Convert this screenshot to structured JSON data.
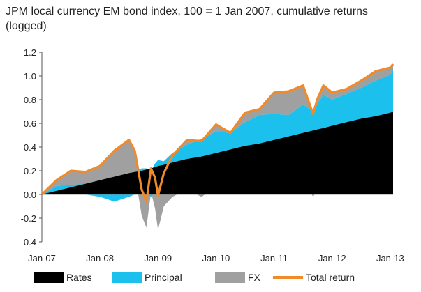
{
  "chart_data": {
    "type": "area",
    "title": "JPM local currency EM bond index, 100 = 1 Jan 2007, cumulative returns (logged)",
    "xlabel": "",
    "ylabel": "",
    "x": [
      2007.0,
      2007.25,
      2007.5,
      2007.75,
      2008.0,
      2008.25,
      2008.5,
      2008.6,
      2008.72,
      2008.8,
      2008.88,
      2008.95,
      2009.0,
      2009.1,
      2009.25,
      2009.5,
      2009.75,
      2010.0,
      2010.25,
      2010.5,
      2010.75,
      2011.0,
      2011.25,
      2011.5,
      2011.67,
      2011.75,
      2011.85,
      2012.0,
      2012.25,
      2012.5,
      2012.75,
      2013.0,
      2013.05
    ],
    "series": [
      {
        "name": "Rates",
        "values": [
          0.0,
          0.03,
          0.06,
          0.09,
          0.12,
          0.15,
          0.18,
          0.19,
          0.2,
          0.21,
          0.22,
          0.23,
          0.24,
          0.25,
          0.27,
          0.3,
          0.32,
          0.35,
          0.38,
          0.41,
          0.43,
          0.46,
          0.49,
          0.52,
          0.54,
          0.55,
          0.56,
          0.58,
          0.61,
          0.64,
          0.66,
          0.69,
          0.7
        ]
      },
      {
        "name": "Principal",
        "values": [
          0.0,
          0.04,
          0.02,
          0.0,
          -0.02,
          -0.06,
          -0.02,
          0.0,
          0.02,
          0.01,
          -0.02,
          0.03,
          0.05,
          0.03,
          0.08,
          0.12,
          0.15,
          0.18,
          0.14,
          0.2,
          0.24,
          0.22,
          0.18,
          0.24,
          0.16,
          0.22,
          0.28,
          0.22,
          0.24,
          0.26,
          0.3,
          0.32,
          0.35
        ]
      },
      {
        "name": "FX",
        "values": [
          0.0,
          0.05,
          0.12,
          0.1,
          0.14,
          0.28,
          0.3,
          0.18,
          -0.18,
          -0.28,
          0.02,
          -0.12,
          -0.3,
          -0.1,
          -0.02,
          0.04,
          -0.02,
          0.06,
          0.0,
          0.08,
          0.05,
          0.18,
          0.2,
          0.16,
          -0.02,
          0.04,
          0.08,
          0.06,
          0.04,
          0.06,
          0.08,
          0.06,
          0.05
        ]
      },
      {
        "name": "Total return",
        "values": [
          0.0,
          0.12,
          0.2,
          0.19,
          0.24,
          0.37,
          0.46,
          0.37,
          0.04,
          -0.06,
          0.22,
          0.14,
          -0.01,
          0.18,
          0.33,
          0.46,
          0.45,
          0.59,
          0.52,
          0.69,
          0.72,
          0.86,
          0.87,
          0.92,
          0.68,
          0.81,
          0.92,
          0.86,
          0.89,
          0.96,
          1.04,
          1.07,
          1.1
        ]
      }
    ],
    "ylim": [
      -0.4,
      1.2
    ],
    "yticks": [
      "-0.4",
      "-0.2",
      "0.0",
      "0.2",
      "0.4",
      "0.6",
      "0.8",
      "1.0",
      "1.2"
    ],
    "xticks": [
      "Jan-07",
      "Jan-08",
      "Jan-09",
      "Jan-10",
      "Jan-11",
      "Jan-12",
      "Jan-13"
    ],
    "xlim": [
      2007.0,
      2013.05
    ],
    "colors": {
      "Rates": "#000000",
      "Principal": "#1cc0ec",
      "FX": "#a0a0a0",
      "Total return": "#f08a2a"
    },
    "legend": "bottom",
    "grid": false
  }
}
